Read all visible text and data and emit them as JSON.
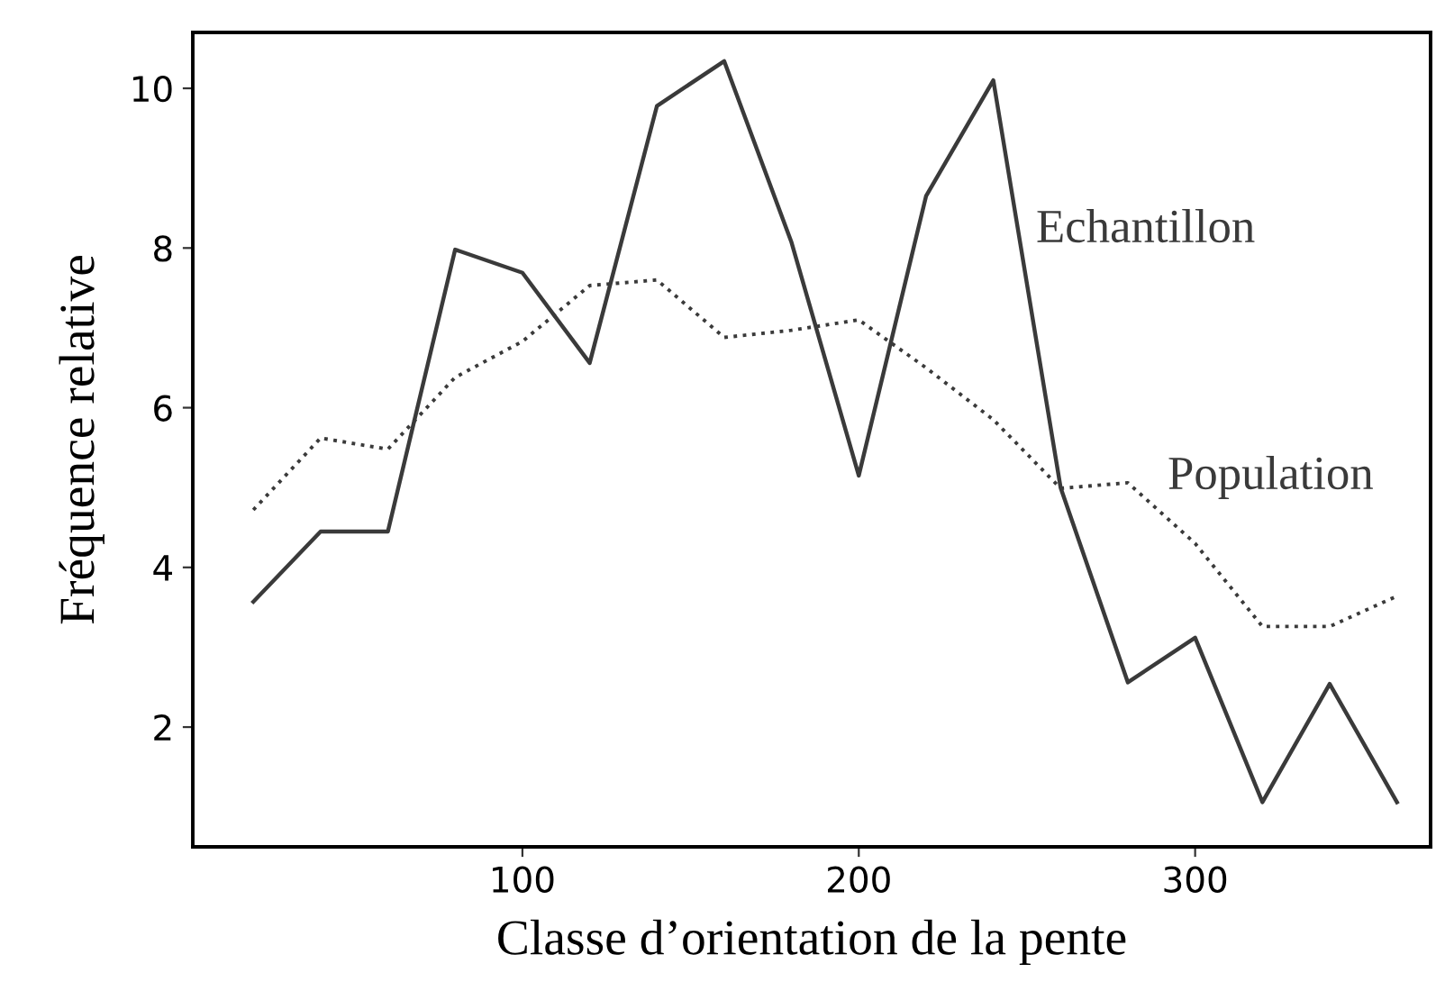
{
  "chart_data": {
    "type": "line",
    "xlabel": "Classe d’orientation de la pente",
    "ylabel": "Fréquence relative",
    "x": [
      20,
      40,
      60,
      80,
      100,
      120,
      140,
      160,
      180,
      200,
      220,
      240,
      260,
      280,
      300,
      320,
      340,
      360
    ],
    "series": [
      {
        "name": "Echantillon",
        "color": "#3a3a3a",
        "line_style": "solid",
        "values": [
          3.57,
          4.45,
          4.45,
          7.98,
          7.69,
          6.56,
          9.78,
          10.34,
          8.07,
          5.15,
          8.65,
          10.1,
          5.0,
          2.56,
          3.12,
          1.06,
          2.54,
          1.06
        ]
      },
      {
        "name": "Population",
        "color": "#3a3a3a",
        "line_style": "dotted",
        "values": [
          4.72,
          5.62,
          5.48,
          6.38,
          6.83,
          7.53,
          7.6,
          6.88,
          6.97,
          7.1,
          6.5,
          5.85,
          4.99,
          5.06,
          4.3,
          3.26,
          3.26,
          3.64
        ]
      }
    ],
    "xlim": [
      2,
      370
    ],
    "ylim": [
      0.5,
      10.7
    ],
    "xticks": [
      100,
      200,
      300
    ],
    "yticks": [
      2,
      4,
      6,
      8,
      10
    ],
    "grid": false,
    "legend": false,
    "marker": "none"
  }
}
